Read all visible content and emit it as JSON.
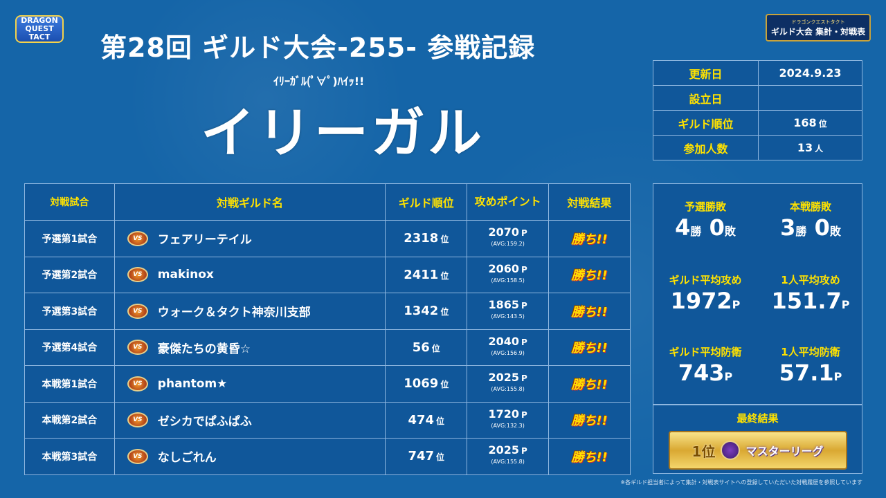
{
  "header": {
    "logo_left_text": "DRAGON QUEST TACT",
    "logo_right_small": "ドラゴンクエストタクト",
    "logo_right_big": "ギルド大会 集計・対戦表",
    "title": "第28回  ギルド大会-255-  参戦記録",
    "subtitle": "ｲﾘｰｶﾞﾙ(ﾟ∀ﾟ)ﾊｲｯ!!",
    "guild_name": "イリーガル"
  },
  "info": [
    {
      "key": "更新日",
      "value": "2024.9.23",
      "unit": ""
    },
    {
      "key": "設立日",
      "value": "",
      "unit": ""
    },
    {
      "key": "ギルド順位",
      "value": "168",
      "unit": "位"
    },
    {
      "key": "参加人数",
      "value": "13",
      "unit": "人"
    }
  ],
  "battle_table": {
    "headers": [
      "対戦試合",
      "対戦ギルド名",
      "ギルド順位",
      "攻めポイント",
      "対戦結果"
    ],
    "rows": [
      {
        "match": "予選第1試合",
        "opponent": "フェアリーテイル",
        "rank": "2318",
        "points": "2070",
        "avg": "(AVG:159.2)",
        "result": "勝ち!!"
      },
      {
        "match": "予選第2試合",
        "opponent": "makinox",
        "rank": "2411",
        "points": "2060",
        "avg": "(AVG:158.5)",
        "result": "勝ち!!"
      },
      {
        "match": "予選第3試合",
        "opponent": "ウォーク＆タクト神奈川支部",
        "rank": "1342",
        "points": "1865",
        "avg": "(AVG:143.5)",
        "result": "勝ち!!"
      },
      {
        "match": "予選第4試合",
        "opponent": "豪傑たちの黄昏☆",
        "rank": "56",
        "points": "2040",
        "avg": "(AVG:156.9)",
        "result": "勝ち!!"
      },
      {
        "match": "本戦第1試合",
        "opponent": "phantom★",
        "rank": "1069",
        "points": "2025",
        "avg": "(AVG:155.8)",
        "result": "勝ち!!"
      },
      {
        "match": "本戦第2試合",
        "opponent": "ゼシカでぱふぱふ",
        "rank": "474",
        "points": "1720",
        "avg": "(AVG:132.3)",
        "result": "勝ち!!"
      },
      {
        "match": "本戦第3試合",
        "opponent": "なしごれん",
        "rank": "747",
        "points": "2025",
        "avg": "(AVG:155.8)",
        "result": "勝ち!!"
      }
    ],
    "rank_unit": "位",
    "point_unit": "P",
    "vs_icon_text": "VS"
  },
  "stats": {
    "prelim_label": "予選勝敗",
    "prelim_wins": "4",
    "prelim_losses": "0",
    "main_label": "本戦勝敗",
    "main_wins": "3",
    "main_losses": "0",
    "win_unit": "勝",
    "loss_unit": "敗",
    "guild_attack_label": "ギルド平均攻め",
    "guild_attack_value": "1972",
    "person_attack_label": "1人平均攻め",
    "person_attack_value": "151.7",
    "guild_defense_label": "ギルド平均防衛",
    "guild_defense_value": "743",
    "person_defense_label": "1人平均防衛",
    "person_defense_value": "57.1",
    "point_unit": "P"
  },
  "final_result": {
    "label": "最終結果",
    "rank": "1位",
    "league": "マスターリーグ"
  },
  "footnote": "※各ギルド担当者によって集計・対戦表サイトへの登録していただいた対戦履歴を参照しています"
}
